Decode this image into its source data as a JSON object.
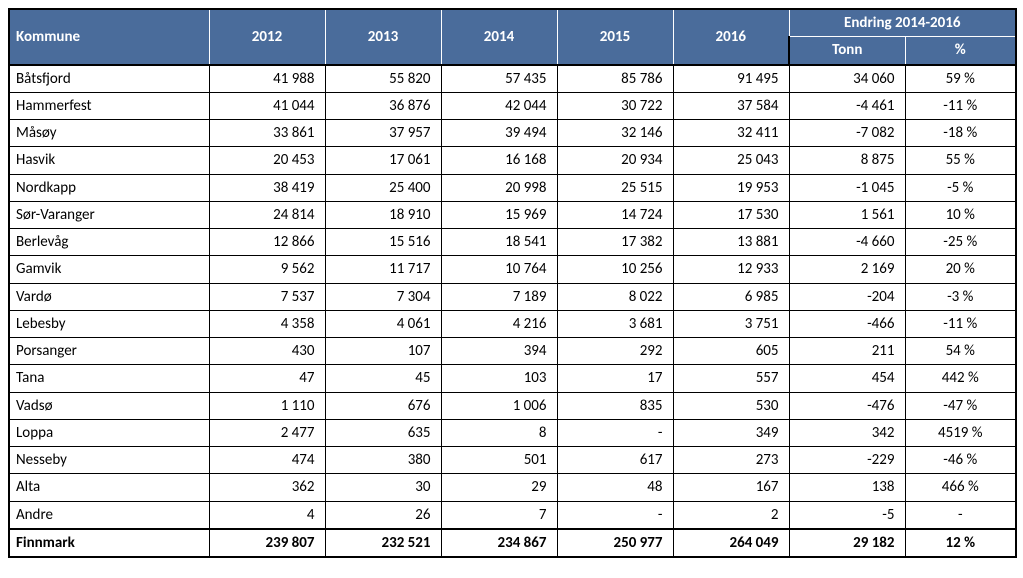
{
  "header": {
    "rowLabel": "Kommune",
    "years": [
      "2012",
      "2013",
      "2014",
      "2015",
      "2016"
    ],
    "changeGroup": "Endring 2014-2016",
    "changeSub": [
      "Tonn",
      "%"
    ]
  },
  "colors": {
    "headerBg": "#4a6c9b",
    "headerText": "#ffffff",
    "border": "#000000",
    "bodyBg": "#ffffff",
    "bodyText": "#000000"
  },
  "columnWidthsPx": {
    "label": 200,
    "year": 116,
    "tonn": 116,
    "pct": 111
  },
  "fontSizePt": 11,
  "rows": [
    {
      "label": "Båtsfjord",
      "y": [
        "41 988",
        "55 820",
        "57 435",
        "85 786",
        "91 495"
      ],
      "tonn": "34 060",
      "pct": "59 %"
    },
    {
      "label": "Hammerfest",
      "y": [
        "41 044",
        "36 876",
        "42 044",
        "30 722",
        "37 584"
      ],
      "tonn": "-4 461",
      "pct": "-11 %"
    },
    {
      "label": "Måsøy",
      "y": [
        "33 861",
        "37 957",
        "39 494",
        "32 146",
        "32 411"
      ],
      "tonn": "-7 082",
      "pct": "-18 %"
    },
    {
      "label": "Hasvik",
      "y": [
        "20 453",
        "17 061",
        "16 168",
        "20 934",
        "25 043"
      ],
      "tonn": "8 875",
      "pct": "55 %"
    },
    {
      "label": "Nordkapp",
      "y": [
        "38 419",
        "25 400",
        "20 998",
        "25 515",
        "19 953"
      ],
      "tonn": "-1 045",
      "pct": "-5 %"
    },
    {
      "label": "Sør-Varanger",
      "y": [
        "24 814",
        "18 910",
        "15 969",
        "14 724",
        "17 530"
      ],
      "tonn": "1 561",
      "pct": "10 %"
    },
    {
      "label": "Berlevåg",
      "y": [
        "12 866",
        "15 516",
        "18 541",
        "17 382",
        "13 881"
      ],
      "tonn": "-4 660",
      "pct": "-25 %"
    },
    {
      "label": "Gamvik",
      "y": [
        "9 562",
        "11 717",
        "10 764",
        "10 256",
        "12 933"
      ],
      "tonn": "2 169",
      "pct": "20 %"
    },
    {
      "label": "Vardø",
      "y": [
        "7 537",
        "7 304",
        "7 189",
        "8 022",
        "6 985"
      ],
      "tonn": "-204",
      "pct": "-3 %"
    },
    {
      "label": "Lebesby",
      "y": [
        "4 358",
        "4 061",
        "4 216",
        "3 681",
        "3 751"
      ],
      "tonn": "-466",
      "pct": "-11 %"
    },
    {
      "label": "Porsanger",
      "y": [
        "430",
        "107",
        "394",
        "292",
        "605"
      ],
      "tonn": "211",
      "pct": "54 %"
    },
    {
      "label": "Tana",
      "y": [
        "47",
        "45",
        "103",
        "17",
        "557"
      ],
      "tonn": "454",
      "pct": "442 %"
    },
    {
      "label": "Vadsø",
      "y": [
        "1 110",
        "676",
        "1 006",
        "835",
        "530"
      ],
      "tonn": "-476",
      "pct": "-47 %"
    },
    {
      "label": "Loppa",
      "y": [
        "2 477",
        "635",
        "8",
        "-",
        "349"
      ],
      "tonn": "342",
      "pct": "4519 %"
    },
    {
      "label": "Nesseby",
      "y": [
        "474",
        "380",
        "501",
        "617",
        "273"
      ],
      "tonn": "-229",
      "pct": "-46 %"
    },
    {
      "label": "Alta",
      "y": [
        "362",
        "30",
        "29",
        "48",
        "167"
      ],
      "tonn": "138",
      "pct": "466 %"
    },
    {
      "label": "Andre",
      "y": [
        "4",
        "26",
        "7",
        "-",
        "2"
      ],
      "tonn": "-5",
      "pct": "-"
    }
  ],
  "total": {
    "label": "Finnmark",
    "y": [
      "239 807",
      "232 521",
      "234 867",
      "250 977",
      "264 049"
    ],
    "tonn": "29 182",
    "pct": "12 %"
  }
}
